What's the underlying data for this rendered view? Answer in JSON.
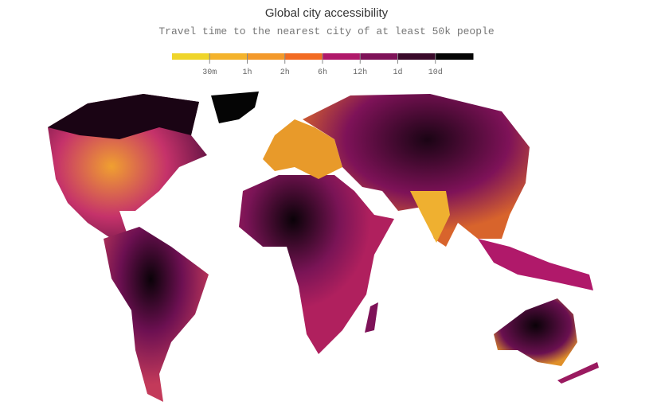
{
  "title": "Global city accessibility",
  "subtitle": "Travel time to the nearest city of at least 50k people",
  "legend": {
    "colors": [
      "#efd52a",
      "#f4b32c",
      "#f3992a",
      "#f26b22",
      "#b0196a",
      "#7e1258",
      "#3a0a2a",
      "#050505"
    ],
    "labels": [
      "30m",
      "1h",
      "2h",
      "6h",
      "12h",
      "1d",
      "10d"
    ]
  }
}
